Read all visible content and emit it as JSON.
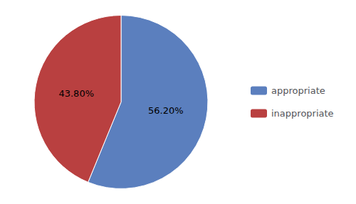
{
  "chart_data": {
    "type": "pie",
    "categories": [
      "appropriate",
      "inappropriate"
    ],
    "values": [
      56.2,
      43.8
    ],
    "value_labels": [
      "56.20%",
      "43.80%"
    ],
    "colors": [
      "#5b7fbe",
      "#b94040"
    ],
    "data_labels": true,
    "legend": "right"
  }
}
